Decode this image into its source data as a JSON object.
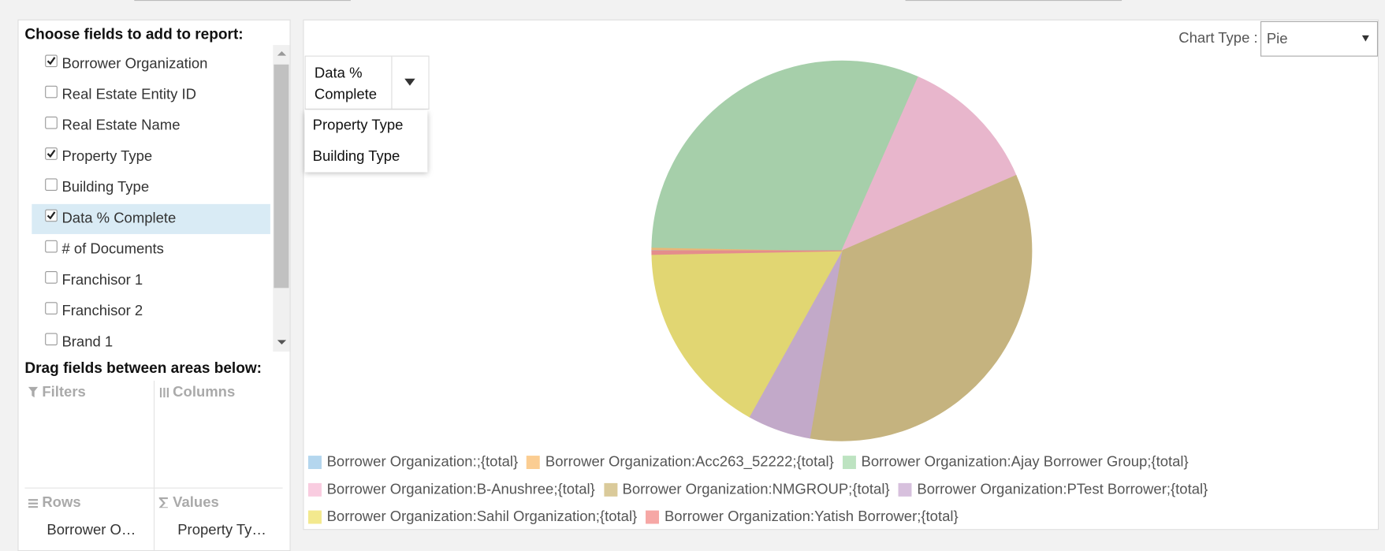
{
  "field_panel": {
    "title": "Choose fields to add to report:",
    "fields": [
      {
        "label": "Borrower Organization",
        "checked": true
      },
      {
        "label": "Real Estate Entity ID",
        "checked": false
      },
      {
        "label": "Real Estate Name",
        "checked": false
      },
      {
        "label": "Property Type",
        "checked": true
      },
      {
        "label": "Building Type",
        "checked": false
      },
      {
        "label": "Data % Complete",
        "checked": true,
        "highlighted": true
      },
      {
        "label": "# of Documents",
        "checked": false
      },
      {
        "label": "Franchisor 1",
        "checked": false
      },
      {
        "label": "Franchisor 2",
        "checked": false
      },
      {
        "label": "Brand 1",
        "checked": false
      }
    ],
    "areas_title": "Drag fields between areas below:",
    "areas": {
      "filters": {
        "label": "Filters"
      },
      "columns": {
        "label": "Columns"
      },
      "rows": {
        "label": "Rows",
        "items": [
          "Borrower O…"
        ]
      },
      "values": {
        "label": "Values",
        "items": [
          "Property Ty…"
        ]
      }
    }
  },
  "chart_type": {
    "label": "Chart Type :",
    "value": "Pie"
  },
  "measure_dropdown": {
    "selected": "Data % Complete",
    "options": [
      "Property Type",
      "Building Type"
    ]
  },
  "chart_data": {
    "type": "pie",
    "categories": [
      "Borrower Organization:;{total}",
      "Borrower Organization:Acc263_52222;{total}",
      "Borrower Organization:Ajay Borrower Group;{total}",
      "Borrower Organization:B-Anushree;{total}",
      "Borrower Organization:NMGROUP;{total}",
      "Borrower Organization:PTest Borrower;{total}",
      "Borrower Organization:Sahil Organization;{total}",
      "Borrower Organization:Yatish Borrower;{total}"
    ],
    "values": [
      0.1,
      0.2,
      31.3,
      11.9,
      34.2,
      5.4,
      16.6,
      0.3
    ],
    "colors": [
      "#a8d0ec",
      "#fbc57f",
      "#b2dfb7",
      "#f9c4db",
      "#d4c189",
      "#d1b6d8",
      "#f2e67b",
      "#f59896"
    ]
  }
}
